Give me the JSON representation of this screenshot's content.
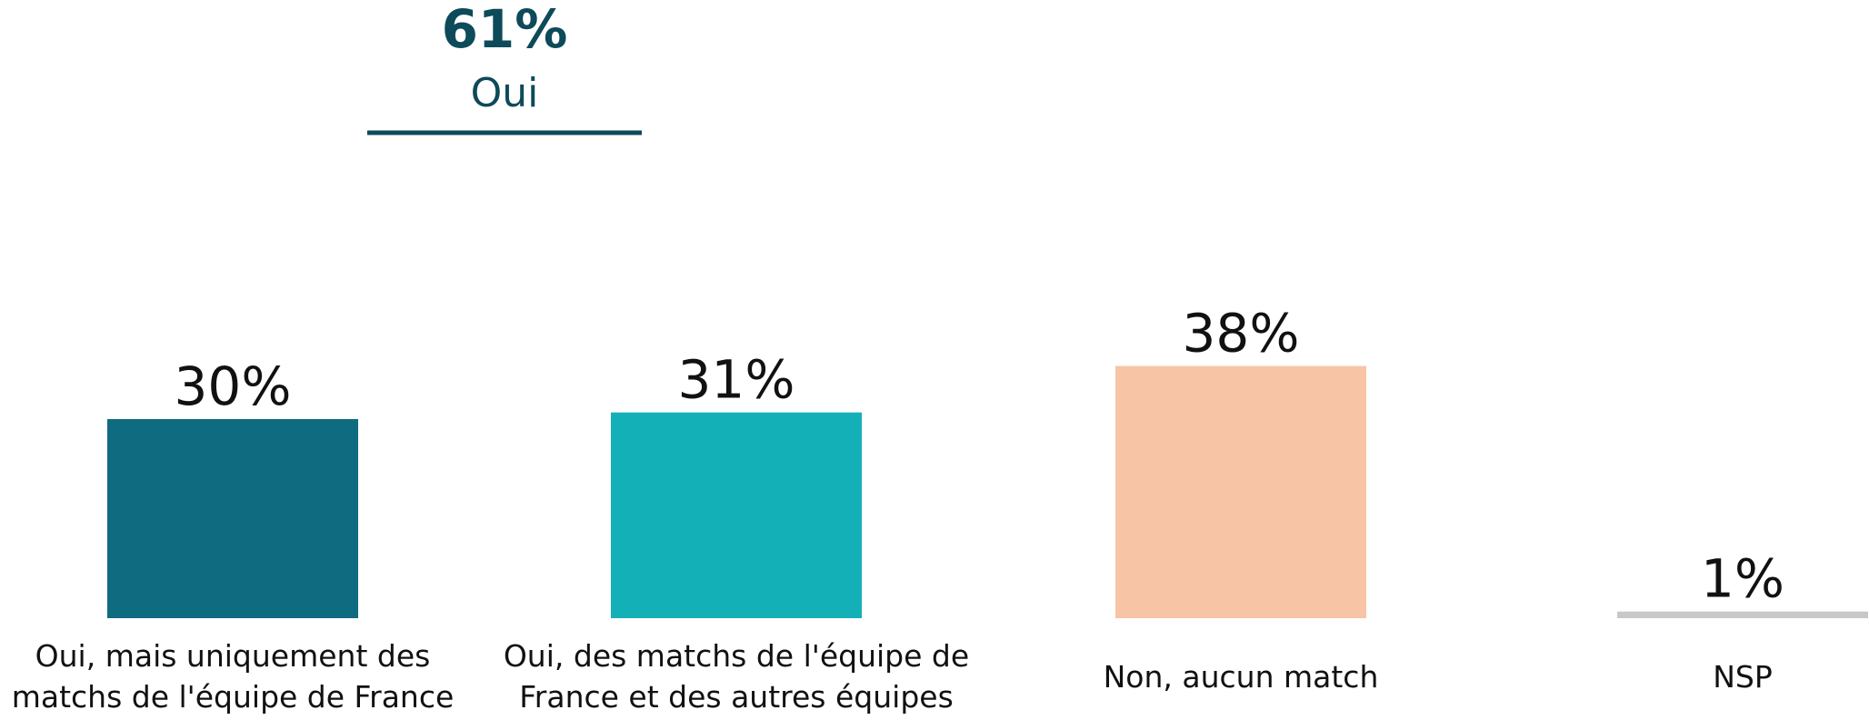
{
  "chart_data": {
    "type": "bar",
    "categories": [
      "Oui, mais uniquement des matchs de l'équipe de France",
      "Oui, des matchs de l'équipe de France et des autres équipes",
      "Non, aucun match",
      "NSP"
    ],
    "values": [
      30,
      31,
      38,
      1
    ],
    "value_labels": [
      "30%",
      "31%",
      "38%",
      "1%"
    ],
    "colors": [
      "#0f6b80",
      "#14b0b8",
      "#f7c4a5",
      "#c8c8c8"
    ],
    "annotation": {
      "text": "61%",
      "label": "Oui"
    }
  }
}
